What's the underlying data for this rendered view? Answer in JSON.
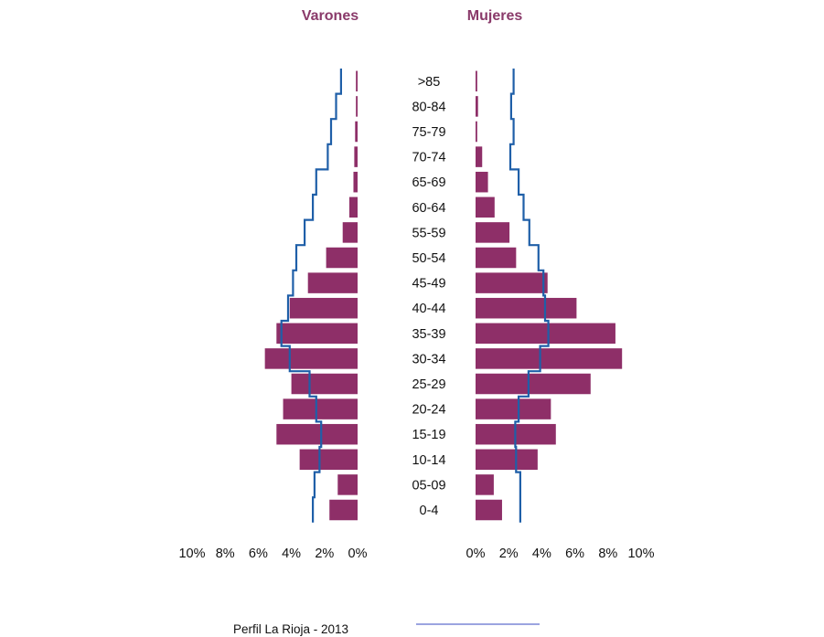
{
  "chart_data": {
    "type": "bar",
    "orientation": "horizontal-population-pyramid",
    "headers": {
      "left": "Varones",
      "right": "Mujeres"
    },
    "categories": [
      ">85",
      "80-84",
      "75-79",
      "70-74",
      "65-69",
      "60-64",
      "55-59",
      "50-54",
      "45-49",
      "40-44",
      "35-39",
      "30-34",
      "25-29",
      "20-24",
      "15-19",
      "10-14",
      "05-09",
      "0-4"
    ],
    "series": [
      {
        "side": "left",
        "kind": "bar",
        "color": "#8e2f68",
        "values": [
          0.1,
          0.1,
          0.15,
          0.2,
          0.25,
          0.5,
          0.9,
          1.9,
          3.0,
          4.1,
          4.9,
          5.6,
          4.0,
          4.5,
          4.9,
          3.5,
          1.2,
          1.7
        ]
      },
      {
        "side": "right",
        "kind": "bar",
        "color": "#8e2f68",
        "values": [
          0.1,
          0.15,
          0.1,
          0.4,
          0.75,
          1.15,
          2.05,
          2.45,
          4.35,
          6.1,
          8.45,
          8.85,
          6.95,
          4.55,
          4.85,
          3.75,
          1.1,
          1.6
        ]
      },
      {
        "side": "left",
        "kind": "line",
        "name": "Perfil La Rioja - 2013",
        "color": "#1f5fa8",
        "values": [
          1.0,
          1.3,
          1.6,
          1.8,
          2.5,
          2.7,
          3.2,
          3.7,
          3.9,
          4.2,
          4.6,
          4.1,
          2.9,
          2.5,
          2.2,
          2.3,
          2.6,
          2.7
        ]
      },
      {
        "side": "right",
        "kind": "line",
        "name": "Perfil La Rioja - 2013",
        "color": "#1f5fa8",
        "values": [
          2.3,
          2.15,
          2.3,
          2.1,
          2.6,
          2.9,
          3.25,
          3.8,
          4.1,
          4.2,
          4.4,
          3.9,
          3.2,
          2.6,
          2.4,
          2.45,
          2.7,
          2.7
        ]
      }
    ],
    "xticks_left": [
      "10%",
      "8%",
      "6%",
      "4%",
      "2%",
      "0%"
    ],
    "xticks_right": [
      "0%",
      "2%",
      "4%",
      "6%",
      "8%",
      "10%"
    ],
    "xlim": [
      0,
      10
    ],
    "unit": "%",
    "grid": false,
    "legend": {
      "label": "Perfil La Rioja - 2013",
      "placement": "bottom-center",
      "color": "#7a86d6"
    }
  }
}
